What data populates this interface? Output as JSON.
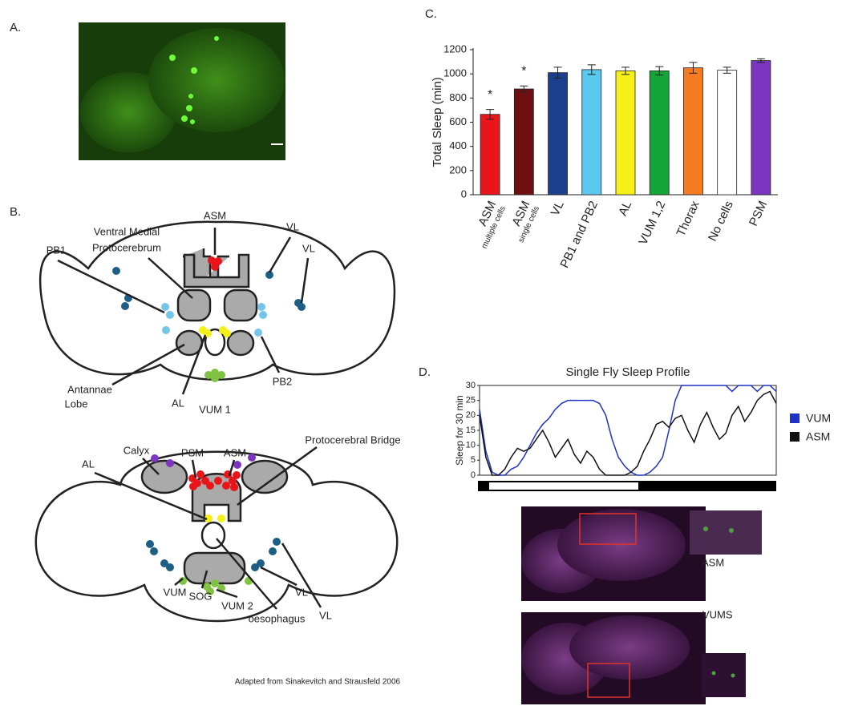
{
  "panels": [
    "A.",
    "B.",
    "C.",
    "D."
  ],
  "diagram": {
    "labels": [
      "ASM",
      "Ventral Medial",
      "Protocerebrum",
      "VL",
      "VL",
      "PB1",
      "Antannae",
      "Lobe",
      "AL",
      "VUM 1",
      "PB2",
      "Calyx",
      "PSM",
      "ASM",
      "Protocerebral Bridge",
      "AL",
      "VUM",
      "SOG",
      "VUM 2",
      "oesophagus",
      "VL",
      "VL"
    ],
    "credit": "Adapted from Sinakevitch and Strausfeld 2006"
  },
  "images": {
    "labels": [
      "ASM",
      "VUMS"
    ]
  },
  "chart_data": [
    {
      "type": "bar",
      "y_label": "Total Sleep (min)",
      "categories": [
        "ASM",
        "ASM",
        "VL",
        "PB1 and PB2",
        "AL",
        "VUM 1,2",
        "Thorax",
        "No cells",
        "PSM"
      ],
      "category_sublabels": [
        "multiple cells",
        "single cells",
        null,
        null,
        null,
        null,
        null,
        null,
        null
      ],
      "values": [
        665,
        875,
        1010,
        1035,
        1025,
        1025,
        1050,
        1030,
        1110
      ],
      "errors": [
        40,
        25,
        45,
        40,
        30,
        35,
        45,
        25,
        15
      ],
      "colors": [
        "#e8161b",
        "#6e0f12",
        "#1b3f8c",
        "#5bc8ef",
        "#f5ef1a",
        "#13a538",
        "#f47b20",
        "#ffffff",
        "#7b35c1"
      ],
      "significance": [
        "*",
        "*",
        null,
        null,
        null,
        null,
        null,
        null,
        null
      ],
      "ylim": [
        0,
        1200
      ],
      "yticks": [
        0,
        200,
        400,
        600,
        800,
        1000,
        1200
      ]
    },
    {
      "type": "line",
      "title": "Single Fly Sleep Profile",
      "y_label": "Sleep for 30 min",
      "ylim": [
        0,
        30
      ],
      "yticks": [
        0,
        5,
        10,
        15,
        20,
        25,
        30
      ],
      "series": [
        {
          "name": "VUM",
          "color": "#2031c8",
          "values": [
            22,
            8,
            1,
            0,
            0,
            2,
            3,
            6,
            10,
            14,
            17,
            19,
            22,
            24,
            25,
            25,
            25,
            25,
            25,
            24,
            20,
            12,
            6,
            3,
            1,
            0,
            0,
            1,
            3,
            6,
            15,
            25,
            30,
            30,
            30,
            30,
            30,
            30,
            30,
            30,
            28,
            30,
            30,
            30,
            28,
            30,
            30,
            28
          ]
        },
        {
          "name": "ASM",
          "color": "#111111",
          "values": [
            20,
            6,
            0,
            0,
            2,
            6,
            9,
            8,
            9,
            12,
            15,
            11,
            6,
            9,
            12,
            7,
            4,
            8,
            6,
            2,
            0,
            0,
            0,
            0,
            1,
            3,
            8,
            12,
            17,
            18,
            16,
            19,
            20,
            15,
            11,
            17,
            21,
            16,
            12,
            14,
            20,
            23,
            18,
            21,
            25,
            27,
            28,
            24
          ]
        }
      ]
    }
  ]
}
